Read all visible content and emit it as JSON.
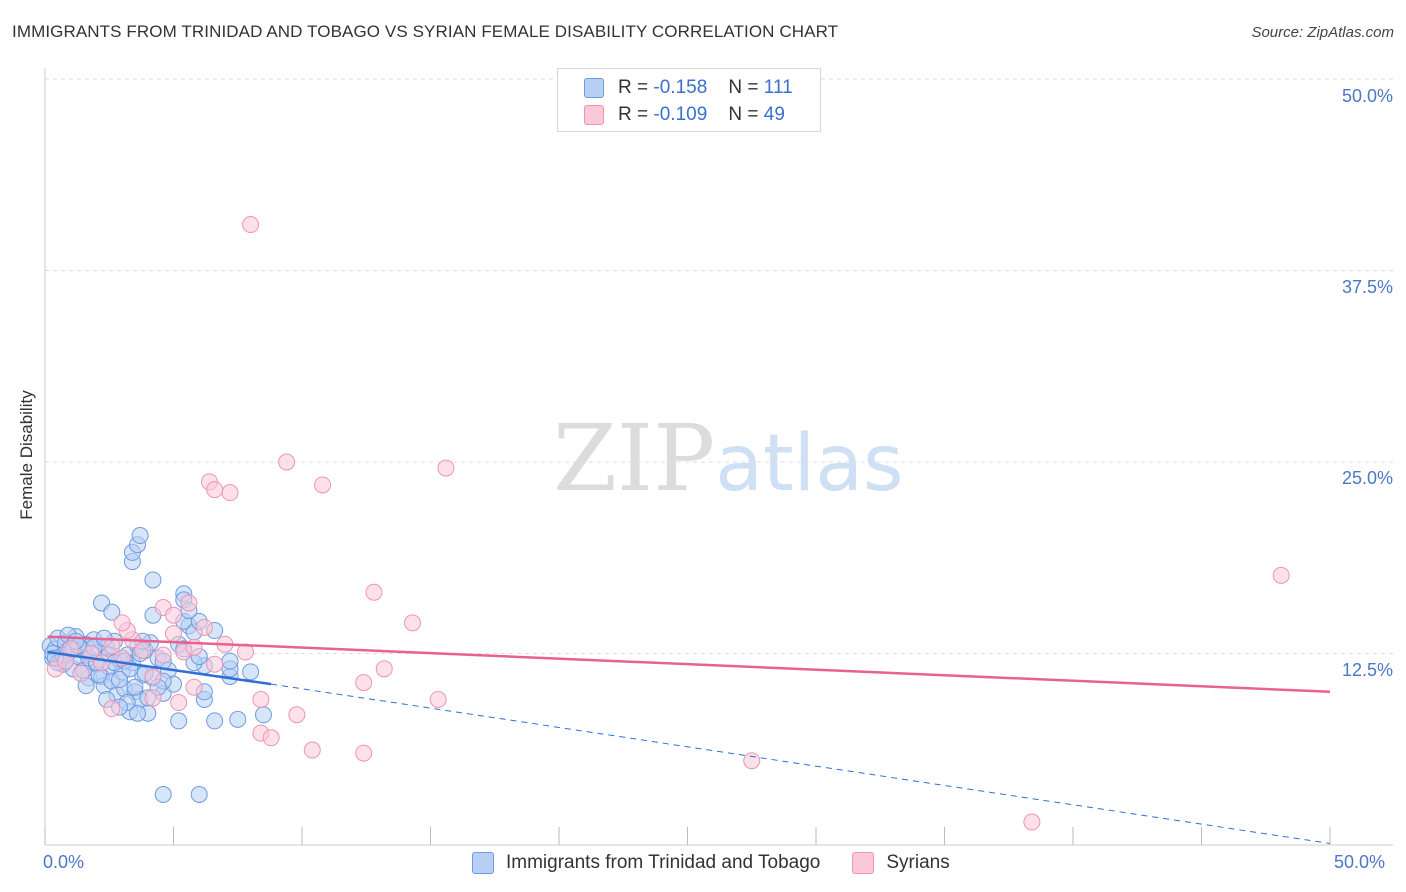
{
  "title": "IMMIGRANTS FROM TRINIDAD AND TOBAGO VS SYRIAN FEMALE DISABILITY CORRELATION CHART",
  "source": "Source: ZipAtlas.com",
  "watermark": {
    "zip": "ZIP",
    "atlas": "atlas"
  },
  "legend": {
    "rows": [
      {
        "r_label": "R =",
        "r_value": "-0.158",
        "n_label": "N =",
        "n_value": "111"
      },
      {
        "r_label": "R =",
        "r_value": "-0.109",
        "n_label": "N =",
        "n_value": "49"
      }
    ]
  },
  "colors": {
    "blue": "#6f9be0",
    "blue_fill": "#b7cff4",
    "blue_line": "#2f6fd6",
    "pink": "#ee94b2",
    "pink_fill": "#fbc8d8",
    "pink_line": "#e8628f",
    "grid": "#dedede",
    "axis_text": "#4a78c8"
  },
  "chart_data": {
    "type": "scatter",
    "title": "IMMIGRANTS FROM TRINIDAD AND TOBAGO VS SYRIAN FEMALE DISABILITY CORRELATION CHART",
    "xlabel": "",
    "ylabel": "Female Disability",
    "xlim": [
      0,
      50
    ],
    "ylim": [
      0,
      50
    ],
    "x_tick_labels": [
      "0.0%",
      "50.0%"
    ],
    "y_ticks": [
      12.5,
      25.0,
      37.5,
      50.0
    ],
    "y_tick_labels": [
      "12.5%",
      "25.0%",
      "37.5%",
      "50.0%"
    ],
    "grid": true,
    "legend_position": "top-center",
    "series": [
      {
        "name": "Immigrants from Trinidad and Tobago",
        "r": -0.158,
        "n": 111,
        "trend": {
          "x_start": 0.1,
          "y_start": 12.6,
          "x_end": 8.8,
          "y_end": 10.5,
          "dashed_to_x": 50.0,
          "dashed_to_y": 0.1
        },
        "points": [
          [
            0.2,
            13.0
          ],
          [
            0.3,
            12.2
          ],
          [
            0.4,
            12.8
          ],
          [
            0.5,
            13.5
          ],
          [
            0.6,
            12.0
          ],
          [
            0.7,
            11.8
          ],
          [
            0.8,
            13.2
          ],
          [
            0.9,
            12.5
          ],
          [
            1.0,
            12.9
          ],
          [
            1.1,
            11.5
          ],
          [
            1.2,
            13.6
          ],
          [
            1.3,
            12.3
          ],
          [
            1.4,
            11.2
          ],
          [
            1.5,
            12.7
          ],
          [
            1.6,
            13.1
          ],
          [
            1.7,
            10.9
          ],
          [
            1.8,
            12.0
          ],
          [
            1.9,
            13.4
          ],
          [
            2.0,
            11.8
          ],
          [
            2.1,
            12.6
          ],
          [
            2.2,
            11.0
          ],
          [
            2.3,
            10.4
          ],
          [
            2.4,
            12.9
          ],
          [
            2.5,
            11.6
          ],
          [
            2.6,
            10.7
          ],
          [
            2.7,
            13.3
          ],
          [
            2.8,
            9.8
          ],
          [
            2.9,
            12.1
          ],
          [
            3.0,
            11.3
          ],
          [
            3.1,
            10.2
          ],
          [
            3.2,
            12.4
          ],
          [
            3.3,
            8.7
          ],
          [
            3.4,
            11.9
          ],
          [
            3.5,
            10.0
          ],
          [
            3.6,
            13.0
          ],
          [
            3.7,
            9.5
          ],
          [
            3.8,
            11.1
          ],
          [
            3.9,
            12.7
          ],
          [
            4.0,
            8.6
          ],
          [
            4.2,
            10.9
          ],
          [
            4.4,
            12.2
          ],
          [
            4.6,
            9.9
          ],
          [
            4.8,
            11.4
          ],
          [
            5.0,
            10.5
          ],
          [
            5.2,
            13.1
          ],
          [
            5.4,
            12.8
          ],
          [
            5.6,
            14.3
          ],
          [
            5.8,
            13.9
          ],
          [
            6.0,
            14.6
          ],
          [
            6.2,
            11.7
          ],
          [
            0.3,
            12.5
          ],
          [
            0.5,
            11.9
          ],
          [
            0.7,
            12.4
          ],
          [
            0.9,
            13.7
          ],
          [
            1.1,
            12.8
          ],
          [
            1.3,
            13.0
          ],
          [
            1.5,
            11.4
          ],
          [
            1.7,
            12.2
          ],
          [
            1.9,
            12.9
          ],
          [
            2.1,
            11.1
          ],
          [
            2.3,
            13.5
          ],
          [
            2.5,
            12.4
          ],
          [
            2.7,
            11.9
          ],
          [
            2.9,
            10.8
          ],
          [
            3.1,
            12.0
          ],
          [
            3.3,
            11.5
          ],
          [
            3.5,
            10.3
          ],
          [
            3.7,
            12.5
          ],
          [
            3.9,
            11.2
          ],
          [
            4.1,
            13.2
          ],
          [
            2.2,
            15.8
          ],
          [
            2.6,
            15.2
          ],
          [
            3.4,
            18.5
          ],
          [
            3.4,
            19.1
          ],
          [
            3.6,
            19.6
          ],
          [
            3.7,
            20.2
          ],
          [
            4.2,
            17.3
          ],
          [
            4.2,
            15.0
          ],
          [
            4.6,
            12.0
          ],
          [
            4.6,
            10.7
          ],
          [
            5.4,
            14.6
          ],
          [
            5.4,
            16.4
          ],
          [
            5.4,
            16.0
          ],
          [
            5.6,
            15.3
          ],
          [
            5.8,
            11.9
          ],
          [
            6.2,
            9.5
          ],
          [
            6.2,
            10.0
          ],
          [
            6.6,
            8.1
          ],
          [
            6.6,
            14.0
          ],
          [
            7.2,
            11.0
          ],
          [
            7.2,
            11.5
          ],
          [
            7.2,
            12.0
          ],
          [
            8.0,
            11.3
          ],
          [
            3.6,
            8.6
          ],
          [
            4.0,
            9.6
          ],
          [
            3.2,
            9.3
          ],
          [
            2.4,
            9.5
          ],
          [
            1.6,
            10.4
          ],
          [
            2.0,
            11.9
          ],
          [
            4.6,
            3.3
          ],
          [
            6.0,
            3.3
          ],
          [
            7.5,
            8.2
          ],
          [
            5.2,
            8.1
          ],
          [
            6.0,
            12.3
          ],
          [
            4.4,
            10.3
          ],
          [
            3.8,
            13.3
          ],
          [
            1.2,
            13.3
          ],
          [
            0.8,
            12.0
          ],
          [
            0.4,
            12.2
          ],
          [
            2.9,
            9.0
          ],
          [
            8.5,
            8.5
          ]
        ]
      },
      {
        "name": "Syrians",
        "r": -0.109,
        "n": 49,
        "trend": {
          "x_start": 0.1,
          "y_start": 13.6,
          "x_end": 50.0,
          "y_end": 10.0
        },
        "points": [
          [
            0.4,
            11.5
          ],
          [
            0.8,
            12.0
          ],
          [
            1.0,
            12.8
          ],
          [
            1.4,
            11.2
          ],
          [
            1.8,
            12.5
          ],
          [
            2.2,
            11.9
          ],
          [
            2.6,
            13.0
          ],
          [
            3.0,
            12.2
          ],
          [
            3.4,
            13.4
          ],
          [
            3.8,
            12.7
          ],
          [
            4.2,
            11.0
          ],
          [
            4.6,
            12.4
          ],
          [
            5.0,
            13.8
          ],
          [
            5.4,
            12.6
          ],
          [
            5.8,
            12.9
          ],
          [
            6.2,
            14.2
          ],
          [
            6.6,
            11.8
          ],
          [
            7.0,
            13.1
          ],
          [
            3.2,
            14.0
          ],
          [
            4.6,
            15.5
          ],
          [
            5.0,
            15.0
          ],
          [
            5.6,
            15.8
          ],
          [
            5.8,
            10.3
          ],
          [
            6.4,
            23.7
          ],
          [
            6.6,
            23.2
          ],
          [
            7.2,
            23.0
          ],
          [
            7.8,
            12.6
          ],
          [
            8.0,
            40.5
          ],
          [
            8.4,
            9.5
          ],
          [
            8.4,
            7.3
          ],
          [
            8.8,
            7.0
          ],
          [
            9.4,
            25.0
          ],
          [
            9.8,
            8.5
          ],
          [
            10.4,
            6.2
          ],
          [
            10.8,
            23.5
          ],
          [
            12.4,
            10.6
          ],
          [
            12.4,
            6.0
          ],
          [
            12.8,
            16.5
          ],
          [
            13.2,
            11.5
          ],
          [
            14.3,
            14.5
          ],
          [
            15.3,
            9.5
          ],
          [
            15.6,
            24.6
          ],
          [
            27.5,
            5.5
          ],
          [
            38.4,
            1.5
          ],
          [
            48.1,
            17.6
          ],
          [
            2.6,
            8.9
          ],
          [
            4.2,
            9.6
          ],
          [
            5.2,
            9.3
          ],
          [
            3.0,
            14.5
          ]
        ]
      }
    ]
  }
}
